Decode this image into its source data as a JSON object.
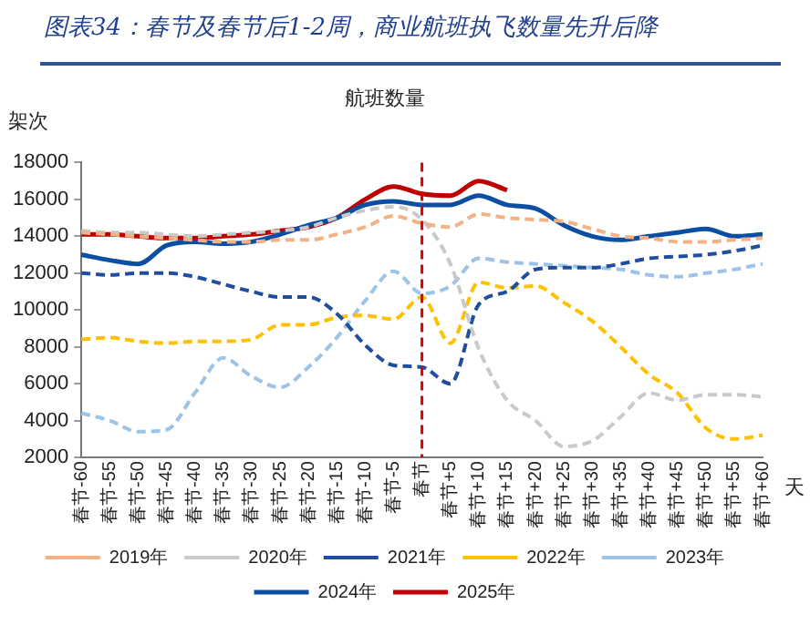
{
  "chart_data": {
    "type": "line",
    "title": "图表34：春节及春节后1-2周，商业航班执飞数量先升后降",
    "subtitle": "航班数量",
    "ylabel": "架次",
    "xlabel": "天",
    "categories": [
      "春节-60",
      "春节-55",
      "春节-50",
      "春节-45",
      "春节-40",
      "春节-35",
      "春节-30",
      "春节-25",
      "春节-20",
      "春节-15",
      "春节-10",
      "春节-5",
      "春节",
      "春节+5",
      "春节+10",
      "春节+15",
      "春节+20",
      "春节+25",
      "春节+30",
      "春节+35",
      "春节+40",
      "春节+45",
      "春节+50",
      "春节+55",
      "春节+60"
    ],
    "ylim": [
      2000,
      18000
    ],
    "yticks": [
      2000,
      4000,
      6000,
      8000,
      10000,
      12000,
      14000,
      16000,
      18000
    ],
    "legend": "bottom",
    "grid": false,
    "ref_lines": [
      {
        "axis": "x",
        "value": "春节",
        "color": "#e00000",
        "line_style": "dashed"
      }
    ],
    "series": [
      {
        "name": "2019年",
        "color": "#f4b183",
        "line_style": "dashed",
        "values": [
          14200,
          14100,
          14000,
          13900,
          13800,
          13700,
          13700,
          13800,
          13800,
          14100,
          14500,
          15100,
          14700,
          14500,
          15200,
          15000,
          14900,
          14800,
          14400,
          14000,
          13900,
          13700,
          13700,
          13800,
          13900
        ]
      },
      {
        "name": "2020年",
        "color": "#c9c9c9",
        "line_style": "dashed",
        "values": [
          14300,
          14200,
          14200,
          14100,
          14000,
          14100,
          14200,
          14300,
          14500,
          15000,
          15400,
          15600,
          14900,
          12500,
          7900,
          5100,
          4000,
          2600,
          2900,
          4200,
          5500,
          5100,
          5400,
          5400,
          5300
        ]
      },
      {
        "name": "2021年",
        "color": "#1f4e9c",
        "line_style": "dashed",
        "values": [
          12000,
          11900,
          12000,
          12000,
          11800,
          11400,
          11000,
          10700,
          10700,
          9800,
          8100,
          7000,
          6900,
          6000,
          10300,
          11000,
          12200,
          12300,
          12300,
          12500,
          12800,
          12900,
          13000,
          13200,
          13500
        ]
      },
      {
        "name": "2022年",
        "color": "#ffc000",
        "line_style": "dashed",
        "values": [
          8400,
          8500,
          8300,
          8200,
          8300,
          8300,
          8400,
          9200,
          9200,
          9600,
          9700,
          9500,
          10700,
          8200,
          11500,
          11200,
          11300,
          10400,
          9400,
          8000,
          6500,
          5500,
          3600,
          3000,
          3200
        ]
      },
      {
        "name": "2023年",
        "color": "#9dc3e6",
        "line_style": "dashed",
        "values": [
          4400,
          4000,
          3400,
          3500,
          5500,
          7400,
          6400,
          5800,
          6900,
          8500,
          10500,
          12100,
          10900,
          11300,
          12800,
          12600,
          12500,
          12400,
          12300,
          12200,
          11900,
          11800,
          12000,
          12200,
          12500
        ]
      },
      {
        "name": "2024年",
        "color": "#0b4ea2",
        "line_style": "solid",
        "values": [
          13000,
          12700,
          12500,
          13500,
          13700,
          13600,
          13700,
          14100,
          14600,
          15000,
          15700,
          15900,
          15700,
          15700,
          16200,
          15700,
          15500,
          14600,
          14000,
          13800,
          14000,
          14200,
          14400,
          14000,
          14100
        ]
      },
      {
        "name": "2025年",
        "color": "#c00000",
        "line_style": "solid",
        "values": [
          14100,
          14100,
          14000,
          13900,
          13900,
          14000,
          14100,
          14300,
          14500,
          15000,
          16000,
          16700,
          16300,
          16200,
          17000,
          16500,
          null,
          null,
          null,
          null,
          null,
          null,
          null,
          null,
          null
        ]
      }
    ]
  }
}
